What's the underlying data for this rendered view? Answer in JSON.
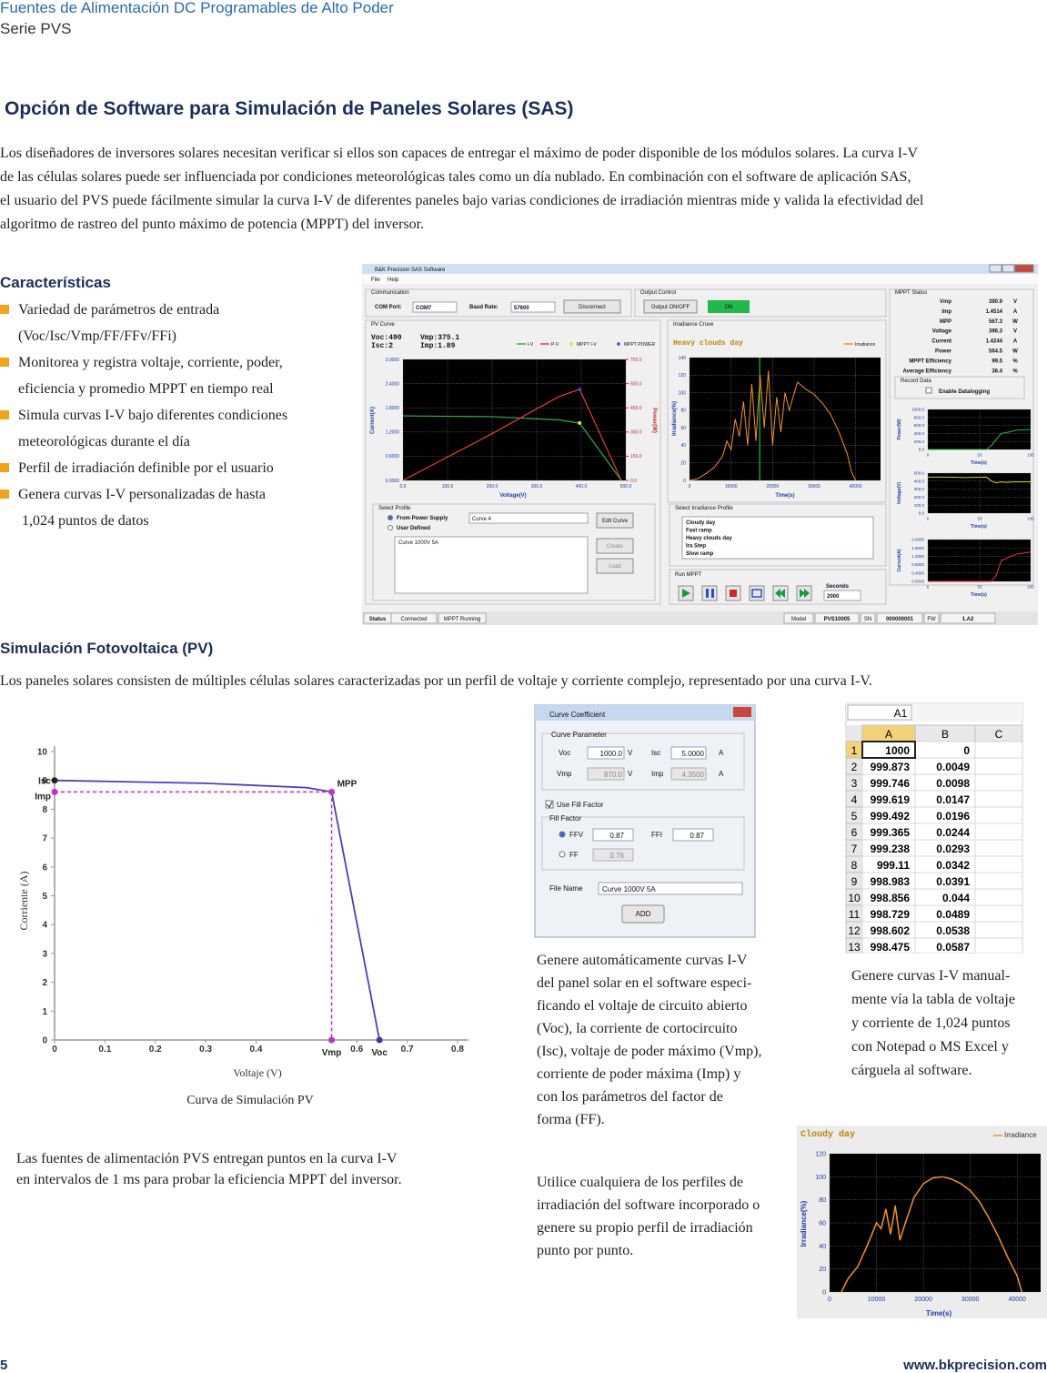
{
  "header": {
    "title": "Fuentes de Alimentación DC Programables de Alto Poder",
    "subtitle": "Serie PVS"
  },
  "section_title": "Opción de Software para Simulación de Paneles Solares (SAS)",
  "intro": [
    "Los diseñadores de inversores solares necesitan verificar si ellos son capaces de entregar el máximo de poder disponible de los módulos solares. La curva I-V",
    "de las células solares puede ser influenciada por condiciones meteorológicas tales como un día nublado.  En combinación con el software de aplicación SAS,",
    "el usuario del PVS puede fácilmente simular la curva I-V de diferentes paneles bajo varias condiciones de irradiación mientras mide y valida la efectividad del",
    "algoritmo de rastreo del punto máximo de potencia (MPPT) del inversor."
  ],
  "features": {
    "title": "Características",
    "items": [
      [
        "Variedad de parámetros de entrada",
        "(Voc/Isc/Vmp/FF/FFv/FFi)"
      ],
      [
        "Monitorea y registra voltaje, corriente, poder,",
        "eficiencia y promedio MPPT en tiempo real"
      ],
      [
        "Simula curvas I-V bajo diferentes condiciones",
        "meteorológicas durante el día"
      ],
      [
        "Perfil de irradiación definible por el usuario"
      ],
      [
        "Genera curvas I-V personalizadas de hasta",
        "1,024 puntos de datos"
      ]
    ]
  },
  "sas": {
    "window_title": "B&K Precision SAS Software",
    "menu": [
      "File",
      "Help"
    ],
    "communication": {
      "title": "Communication",
      "com_label": "COM Port:",
      "com_value": "COM7",
      "baud_label": "Baud Rate:",
      "baud_value": "57600",
      "button": "Disconnect"
    },
    "output": {
      "title": "Output Control",
      "button": "Output ON/OFF",
      "state": "ON"
    },
    "mppt_status": {
      "title": "MPPT Status",
      "rows": [
        [
          "Vmp",
          "390.9",
          "V"
        ],
        [
          "Imp",
          "1.4514",
          "A"
        ],
        [
          "MPP",
          "567.3",
          "W"
        ],
        [
          "Voltage",
          "396.3",
          "V"
        ],
        [
          "Current",
          "1.4244",
          "A"
        ],
        [
          "Power",
          "564.5",
          "W"
        ],
        [
          "MPPT Efficiency",
          "99.5",
          "%"
        ],
        [
          "Average Efficiency",
          "36.4",
          "%"
        ]
      ]
    },
    "record": {
      "title": "Record Data",
      "checkbox": "Enable Datalogging"
    },
    "pv_curve": {
      "type": "line",
      "title": "PV Curve",
      "readout": [
        "Voc:490",
        "Isc:2",
        "Vmp:375.1",
        "Imp:1.89"
      ],
      "x_label": "Voltage(V)",
      "y_label": "Current(A)",
      "y2_label": "Power(W)",
      "xlim": [
        0,
        500
      ],
      "ylim": [
        0,
        3
      ],
      "y2lim": [
        0,
        750
      ],
      "xticks": [
        {
          "value": 0,
          "label": "0.0"
        },
        {
          "value": 100,
          "label": "100.0"
        },
        {
          "value": 200,
          "label": "200.0"
        },
        {
          "value": 300,
          "label": "300.0"
        },
        {
          "value": 400,
          "label": "400.0"
        },
        {
          "value": 500,
          "label": "500.0"
        }
      ],
      "yticks": [
        {
          "value": 0,
          "label": "0.0000"
        },
        {
          "value": 0.6,
          "label": "0.6000"
        },
        {
          "value": 1.2,
          "label": "1.2000"
        },
        {
          "value": 1.8,
          "label": "1.8000"
        },
        {
          "value": 2.4,
          "label": "2.4000"
        },
        {
          "value": 3,
          "label": "3.0000"
        }
      ],
      "y2ticks": [
        {
          "value": 0,
          "label": "0.0"
        },
        {
          "value": 150,
          "label": "150.0"
        },
        {
          "value": 300,
          "label": "300.0"
        },
        {
          "value": 450,
          "label": "450.0"
        },
        {
          "value": 600,
          "label": "600.0"
        },
        {
          "value": 750,
          "label": "750.0"
        }
      ],
      "grid": true,
      "series": [
        {
          "name": "I-V",
          "color": "#2fb24a",
          "style": "line",
          "x": [
            0,
            200,
            350,
            396.3,
            490
          ],
          "values": [
            1.6,
            1.58,
            1.5,
            1.42,
            0
          ]
        },
        {
          "name": "P-V",
          "color": "#e83a3a",
          "style": "line",
          "axis": "y2",
          "x": [
            0,
            200,
            350,
            396.3,
            490
          ],
          "values": [
            0,
            290,
            520,
            564.5,
            0
          ]
        },
        {
          "name": "MPPT I-V",
          "color": "#e8e020",
          "style": "marker",
          "x": [
            396.3
          ],
          "values": [
            1.4244
          ]
        },
        {
          "name": "MPPT POWER",
          "color": "#3050d0",
          "style": "marker",
          "axis": "y2",
          "x": [
            396.3
          ],
          "values": [
            564.5
          ]
        }
      ]
    },
    "irradiance": {
      "type": "line",
      "title": "Irradiance Cruve",
      "profile": "Heavy clouds day",
      "x_label": "Time(s)",
      "y_label": "Irradiance(%)",
      "xlim": [
        0,
        46000
      ],
      "ylim": [
        0,
        140
      ],
      "xticks": [
        0,
        10000,
        20000,
        30000,
        40000
      ],
      "yticks": [
        0,
        20,
        40,
        60,
        80,
        100,
        120,
        140
      ],
      "grid": true,
      "cursor_x": 16900,
      "cursor_color": "#20c040",
      "series": [
        {
          "name": "Irradiance",
          "color": "#f0922a",
          "style": "line",
          "x": [
            0,
            2000,
            4000,
            6000,
            8000,
            9000,
            10000,
            11000,
            12000,
            13000,
            14000,
            15000,
            16000,
            17000,
            18000,
            19000,
            20000,
            21000,
            22000,
            23000,
            24000,
            26000,
            28000,
            30000,
            32000,
            34000,
            36000,
            38000,
            39000,
            40000
          ],
          "values": [
            0,
            2,
            8,
            15,
            28,
            45,
            35,
            70,
            50,
            90,
            40,
            110,
            45,
            120,
            60,
            125,
            40,
            95,
            55,
            100,
            80,
            112,
            104,
            98,
            88,
            75,
            55,
            30,
            10,
            0
          ]
        }
      ]
    },
    "select_profile": {
      "title": "Select Profile",
      "option_1": "From Power Supply",
      "option_2": "User Defined",
      "curve": "Curve 4",
      "list_item": "Curve 1000V 5A",
      "buttons": [
        "Edit Curve",
        "Create",
        "Load"
      ]
    },
    "irradiance_profile": {
      "title": "Select Irradiance Profile",
      "items": [
        "Cloudy day",
        "Fast ramp",
        "Heavy clouds day",
        "Ira Step",
        "Slow ramp"
      ]
    },
    "run": {
      "title": "Run MPPT",
      "seconds_label": "Seconds",
      "seconds": "2000"
    },
    "mini_charts": [
      {
        "type": "line",
        "y_label": "Power(W)",
        "x_label": "Time(s)",
        "xlim": [
          0,
          105
        ],
        "ylim": [
          0,
          1000
        ],
        "xticks": [
          0,
          53,
          105
        ],
        "yticks": [
          {
            "value": 0,
            "label": "0.0"
          },
          {
            "value": 200,
            "label": "200.0"
          },
          {
            "value": 400,
            "label": "400.0"
          },
          {
            "value": 600,
            "label": "600.0"
          },
          {
            "value": 800,
            "label": "800.0"
          },
          {
            "value": 1000,
            "label": "1000.0"
          }
        ],
        "grid": true,
        "series": [
          {
            "color": "#2fb24a",
            "style": "line",
            "x": [
              0,
              20,
              40,
              60,
              65,
              70,
              75,
              80,
              90,
              105
            ],
            "values": [
              0,
              0,
              0,
              0,
              100,
              250,
              400,
              420,
              480,
              500
            ]
          }
        ]
      },
      {
        "type": "line",
        "y_label": "Voltage(V)",
        "x_label": "Time(s)",
        "xlim": [
          0,
          105
        ],
        "ylim": [
          0,
          500
        ],
        "xticks": [
          0,
          53,
          105
        ],
        "yticks": [
          {
            "value": 0,
            "label": "0.0"
          },
          {
            "value": 100,
            "label": "100.0"
          },
          {
            "value": 200,
            "label": "200.0"
          },
          {
            "value": 300,
            "label": "300.0"
          },
          {
            "value": 400,
            "label": "400.0"
          },
          {
            "value": 500,
            "label": "500.0"
          }
        ],
        "grid": true,
        "series": [
          {
            "color": "#d8d020",
            "style": "line",
            "x": [
              0,
              20,
              40,
              60,
              65,
              70,
              75,
              80,
              90,
              105
            ],
            "values": [
              450,
              450,
              445,
              450,
              400,
              380,
              390,
              385,
              390,
              390
            ]
          }
        ]
      },
      {
        "type": "line",
        "y_label": "Current(A)",
        "x_label": "Time(s)",
        "xlim": [
          0,
          105
        ],
        "ylim": [
          0,
          2
        ],
        "xticks": [
          0,
          53,
          105
        ],
        "yticks": [
          {
            "value": 0,
            "label": "0.0000"
          },
          {
            "value": 0.4,
            "label": "0.4000"
          },
          {
            "value": 0.8,
            "label": "0.8000"
          },
          {
            "value": 1.2,
            "label": "1.2000"
          },
          {
            "value": 1.6,
            "label": "1.6000"
          },
          {
            "value": 2,
            "label": "2.0000"
          }
        ],
        "grid": true,
        "series": [
          {
            "color": "#e83a3a",
            "style": "line",
            "x": [
              0,
              20,
              40,
              60,
              65,
              70,
              75,
              80,
              90,
              105
            ],
            "values": [
              0,
              0,
              0,
              0,
              0,
              0.3,
              1,
              1.1,
              1.3,
              1.4
            ]
          }
        ]
      }
    ],
    "status": [
      "Status",
      "Connected",
      "MPPT Running",
      "Model",
      "PVS10005",
      "SN",
      "000000001",
      "FW",
      "1.A2"
    ]
  },
  "pv_section": {
    "title": "Simulación Fotovoltaica (PV)",
    "text": "Los paneles solares consisten de múltiples células solares caracterizadas por un perfil de voltaje y corriente complejo, representado por una curva I-V."
  },
  "pv_simulation": {
    "type": "line",
    "x_label": "Voltaje (V)",
    "y_label": "Corriente (A)",
    "caption": "Curva de Simulación PV",
    "xlim": [
      0,
      0.8
    ],
    "ylim": [
      0,
      10
    ],
    "xticks": [
      0,
      0.1,
      0.2,
      0.3,
      0.4,
      0.6,
      0.7,
      0.8
    ],
    "yticks": [
      0,
      1,
      2,
      3,
      4,
      5,
      6,
      7,
      8,
      9,
      10
    ],
    "series": [
      {
        "color": "#4a3fb8",
        "x": [
          0,
          0.3,
          0.5,
          0.55,
          0.645
        ],
        "values": [
          9,
          8.9,
          8.75,
          8.6,
          0
        ]
      }
    ],
    "annotations": {
      "isc": "Isc",
      "imp": "Imp",
      "mpp": "MPP",
      "vmp": "Vmp",
      "voc": "Voc"
    }
  },
  "pv_note": [
    "Las fuentes de alimentación PVS entregan puntos en la curva I-V",
    "en intervalos de 1 ms para probar la eficiencia MPPT del inversor."
  ],
  "curve_dialog": {
    "title": "Curve Coefficient",
    "parameter_group": "Curve Parameter",
    "voc_label": "Voc",
    "voc": "1000.0",
    "voc_unit": "V",
    "isc_label": "Isc",
    "isc": "5.0000",
    "isc_unit": "A",
    "vmp_label": "Vmp",
    "vmp": "870.0",
    "vmp_unit": "V",
    "imp_label": "Imp",
    "imp": "4.3500",
    "imp_unit": "A",
    "use_ff": "Use Fill Factor",
    "ff_group": "Fill Factor",
    "ffv_label": "FFV",
    "ffv": "0.87",
    "ffi_label": "FFI",
    "ffi": "0.87",
    "ff_label": "FF",
    "ff": "0.76",
    "file_label": "File Name",
    "file": "Curve 1000V 5A",
    "button": "ADD"
  },
  "curve_dialog_caption": [
    "Genere automáticamente curvas I-V",
    "del panel solar en el software especi-",
    "ficando el voltaje de circuito abierto",
    "(Voc), la corriente de cortocircuito",
    "(Isc), voltaje de poder máximo (Vmp),",
    "corriente de poder máxima (Imp) y",
    "con los parámetros del factor de",
    "forma (FF)."
  ],
  "excel": {
    "name_box": "A1",
    "columns": [
      "A",
      "B",
      "C"
    ],
    "rows": [
      [
        "1",
        "1000",
        "0"
      ],
      [
        "2",
        "999.873",
        "0.0049"
      ],
      [
        "3",
        "999.746",
        "0.0098"
      ],
      [
        "4",
        "999.619",
        "0.0147"
      ],
      [
        "5",
        "999.492",
        "0.0196"
      ],
      [
        "6",
        "999.365",
        "0.0244"
      ],
      [
        "7",
        "999.238",
        "0.0293"
      ],
      [
        "8",
        "999.11",
        "0.0342"
      ],
      [
        "9",
        "998.983",
        "0.0391"
      ],
      [
        "10",
        "998.856",
        "0.044"
      ],
      [
        "11",
        "998.729",
        "0.0489"
      ],
      [
        "12",
        "998.602",
        "0.0538"
      ],
      [
        "13",
        "998.475",
        "0.0587"
      ]
    ]
  },
  "excel_caption": [
    "Genere curvas I-V manual-",
    "mente vía la tabla de voltaje",
    "y corriente de 1,024 puntos",
    "con Notepad o MS Excel y",
    "cárguela al software."
  ],
  "profile_caption": [
    "Utilice cualquiera de los perfiles de",
    "irradiación del software incorporado o",
    "genere su propio perfil de irradiación",
    "punto por punto."
  ],
  "cloudy_chart": {
    "type": "line",
    "title": "Cloudy day",
    "x_label": "Time(s)",
    "y_label": "Irradiance(%)",
    "xlim": [
      0,
      45000
    ],
    "ylim": [
      0,
      120
    ],
    "xticks": [
      0,
      10000,
      20000,
      30000,
      40000
    ],
    "yticks": [
      0,
      20,
      40,
      60,
      80,
      100,
      120
    ],
    "grid": true,
    "series": [
      {
        "name": "Irradiance",
        "color": "#f0922a",
        "style": "line",
        "x": [
          2500,
          4000,
          6000,
          8000,
          9000,
          10000,
          11000,
          12000,
          13000,
          14000,
          15000,
          16000,
          17000,
          18000,
          20000,
          22000,
          24000,
          26000,
          28000,
          30000,
          32000,
          34000,
          36000,
          38000,
          40000,
          41000
        ],
        "values": [
          0,
          12,
          22,
          40,
          50,
          60,
          55,
          72,
          50,
          75,
          45,
          58,
          70,
          82,
          94,
          99,
          100,
          98,
          94,
          88,
          78,
          64,
          48,
          30,
          14,
          0
        ]
      }
    ]
  },
  "footer": {
    "page": "5",
    "url": "www.bkprecision.com"
  }
}
